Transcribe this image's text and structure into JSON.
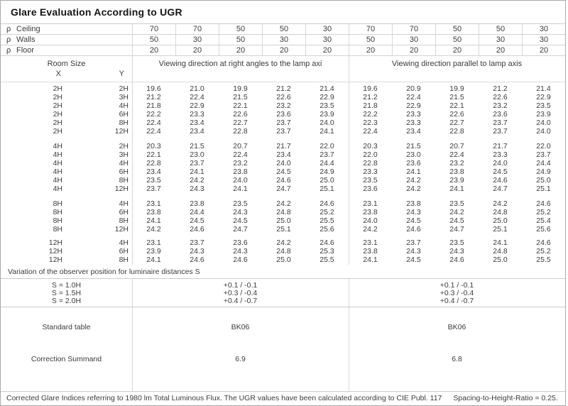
{
  "title": "Glare Evaluation According to UGR",
  "rho_symbol": "ρ",
  "reflectance_rows": [
    {
      "label": "Ceiling",
      "left": [
        "70",
        "70",
        "50",
        "50",
        "30"
      ],
      "right": [
        "70",
        "70",
        "50",
        "50",
        "30"
      ]
    },
    {
      "label": "Walls",
      "left": [
        "50",
        "30",
        "50",
        "30",
        "30"
      ],
      "right": [
        "50",
        "30",
        "50",
        "30",
        "30"
      ]
    },
    {
      "label": "Floor",
      "left": [
        "20",
        "20",
        "20",
        "20",
        "20"
      ],
      "right": [
        "20",
        "20",
        "20",
        "20",
        "20"
      ]
    }
  ],
  "table_header": {
    "room_size": "Room Size",
    "x_label": "X",
    "y_label": "Y",
    "left_group": "Viewing direction at right angles to the lamp axi",
    "right_group": "Viewing direction parallel to lamp axis"
  },
  "ugr_blocks": [
    {
      "rows": [
        {
          "x": "2H",
          "y": "2H",
          "left": [
            "19.6",
            "21.0",
            "19.9",
            "21.2",
            "21.4"
          ],
          "right": [
            "19.6",
            "20.9",
            "19.9",
            "21.2",
            "21.4"
          ]
        },
        {
          "x": "2H",
          "y": "3H",
          "left": [
            "21.2",
            "22.4",
            "21.5",
            "22.6",
            "22.9"
          ],
          "right": [
            "21.2",
            "22.4",
            "21.5",
            "22.6",
            "22.9"
          ]
        },
        {
          "x": "2H",
          "y": "4H",
          "left": [
            "21.8",
            "22.9",
            "22.1",
            "23.2",
            "23.5"
          ],
          "right": [
            "21.8",
            "22.9",
            "22.1",
            "23.2",
            "23.5"
          ]
        },
        {
          "x": "2H",
          "y": "6H",
          "left": [
            "22.2",
            "23.3",
            "22.6",
            "23.6",
            "23.9"
          ],
          "right": [
            "22.2",
            "23.3",
            "22.6",
            "23.6",
            "23.9"
          ]
        },
        {
          "x": "2H",
          "y": "8H",
          "left": [
            "22.4",
            "23.4",
            "22.7",
            "23.7",
            "24.0"
          ],
          "right": [
            "22.3",
            "23.3",
            "22.7",
            "23.7",
            "24.0"
          ]
        },
        {
          "x": "2H",
          "y": "12H",
          "left": [
            "22.4",
            "23.4",
            "22.8",
            "23.7",
            "24.1"
          ],
          "right": [
            "22.4",
            "23.4",
            "22.8",
            "23.7",
            "24.0"
          ]
        }
      ]
    },
    {
      "rows": [
        {
          "x": "4H",
          "y": "2H",
          "left": [
            "20.3",
            "21.5",
            "20.7",
            "21.7",
            "22.0"
          ],
          "right": [
            "20.3",
            "21.5",
            "20.7",
            "21.7",
            "22.0"
          ]
        },
        {
          "x": "4H",
          "y": "3H",
          "left": [
            "22.1",
            "23.0",
            "22.4",
            "23.4",
            "23.7"
          ],
          "right": [
            "22.0",
            "23.0",
            "22.4",
            "23.3",
            "23.7"
          ]
        },
        {
          "x": "4H",
          "y": "4H",
          "left": [
            "22.8",
            "23.7",
            "23.2",
            "24.0",
            "24.4"
          ],
          "right": [
            "22.8",
            "23.6",
            "23.2",
            "24.0",
            "24.4"
          ]
        },
        {
          "x": "4H",
          "y": "6H",
          "left": [
            "23.4",
            "24.1",
            "23.8",
            "24.5",
            "24.9"
          ],
          "right": [
            "23.3",
            "24.1",
            "23.8",
            "24.5",
            "24.9"
          ]
        },
        {
          "x": "4H",
          "y": "8H",
          "left": [
            "23.5",
            "24.2",
            "24.0",
            "24.6",
            "25.0"
          ],
          "right": [
            "23.5",
            "24.2",
            "23.9",
            "24.6",
            "25.0"
          ]
        },
        {
          "x": "4H",
          "y": "12H",
          "left": [
            "23.7",
            "24.3",
            "24.1",
            "24.7",
            "25.1"
          ],
          "right": [
            "23.6",
            "24.2",
            "24.1",
            "24.7",
            "25.1"
          ]
        }
      ]
    },
    {
      "rows": [
        {
          "x": "8H",
          "y": "4H",
          "left": [
            "23.1",
            "23.8",
            "23.5",
            "24.2",
            "24.6"
          ],
          "right": [
            "23.1",
            "23.8",
            "23.5",
            "24.2",
            "24.6"
          ]
        },
        {
          "x": "8H",
          "y": "6H",
          "left": [
            "23.8",
            "24.4",
            "24.3",
            "24.8",
            "25.2"
          ],
          "right": [
            "23.8",
            "24.3",
            "24.2",
            "24.8",
            "25.2"
          ]
        },
        {
          "x": "8H",
          "y": "8H",
          "left": [
            "24.1",
            "24.5",
            "24.5",
            "25.0",
            "25.5"
          ],
          "right": [
            "24.0",
            "24.5",
            "24.5",
            "25.0",
            "25.4"
          ]
        },
        {
          "x": "8H",
          "y": "12H",
          "left": [
            "24.2",
            "24.6",
            "24.7",
            "25.1",
            "25.6"
          ],
          "right": [
            "24.2",
            "24.6",
            "24.7",
            "25.1",
            "25.6"
          ]
        }
      ]
    },
    {
      "rows": [
        {
          "x": "12H",
          "y": "4H",
          "left": [
            "23.1",
            "23.7",
            "23.6",
            "24.2",
            "24.6"
          ],
          "right": [
            "23.1",
            "23.7",
            "23.5",
            "24.1",
            "24.6"
          ]
        },
        {
          "x": "12H",
          "y": "6H",
          "left": [
            "23.9",
            "24.3",
            "24.3",
            "24.8",
            "25.3"
          ],
          "right": [
            "23.8",
            "24.3",
            "24.3",
            "24.8",
            "25.2"
          ]
        },
        {
          "x": "12H",
          "y": "8H",
          "left": [
            "24.1",
            "24.6",
            "24.6",
            "25.0",
            "25.5"
          ],
          "right": [
            "24.1",
            "24.5",
            "24.6",
            "25.0",
            "25.5"
          ]
        }
      ]
    }
  ],
  "variation": {
    "label": "Variation of the observer position for luminaire distances S",
    "rows": [
      {
        "s": "S = 1.0H",
        "left": "+0.1 / -0.1",
        "right": "+0.1 / -0.1"
      },
      {
        "s": "S = 1.5H",
        "left": "+0.3 / -0.4",
        "right": "+0.3 / -0.4"
      },
      {
        "s": "S = 2.0H",
        "left": "+0.4 / -0.7",
        "right": "+0.4 / -0.7"
      }
    ]
  },
  "summary": {
    "standard_table_label": "Standard table",
    "standard_table_left": "BK06",
    "standard_table_right": "BK06",
    "correction_label": "Correction Summand",
    "correction_left": "6.9",
    "correction_right": "6.8"
  },
  "footer": {
    "note": "Corrected Glare Indices referring to 1980 lm Total Luminous Flux. The UGR values have been calculated according to CIE Publ. 117",
    "ratio": "Spacing-to-Height-Ratio = 0.25."
  },
  "colors": {
    "grid": "#d7d7d7",
    "text": "#3b3b3b",
    "title_text": "#141414"
  }
}
